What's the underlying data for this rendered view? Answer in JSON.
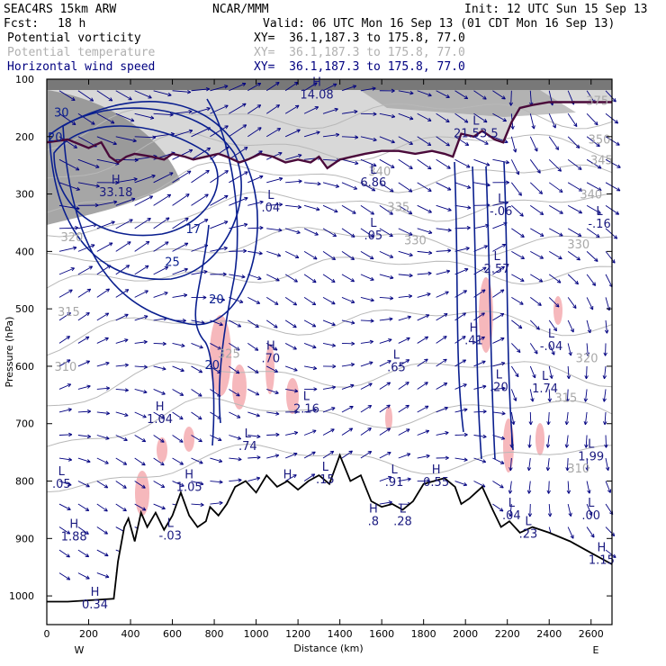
{
  "header": {
    "title": "SEAC4RS 15km ARW",
    "center": "NCAR/MMM",
    "init": "Init: 12 UTC Sun 15 Sep 13",
    "fcst_label": "Fcst:",
    "fcst_value": "18 h",
    "valid": "Valid: 06 UTC Mon 16 Sep 13 (01 CDT Mon 16 Sep 13)"
  },
  "fields": [
    {
      "name": "Potential vorticity",
      "xy": "XY=  36.1,187.3 to 175.8, 77.0",
      "color": "#000000"
    },
    {
      "name": "Potential temperature",
      "xy": "XY=  36.1,187.3 to 175.8, 77.0",
      "color": "#b0b0b0"
    },
    {
      "name": "Horizontal wind speed",
      "xy": "XY=  36.1,187.3 to 175.8, 77.0",
      "color": "#000080"
    }
  ],
  "chart_data": {
    "type": "cross-section",
    "xlabel": "Distance (km)",
    "ylabel": "Pressure (hPa)",
    "xlim": [
      0,
      2700
    ],
    "ylim": [
      1050,
      100
    ],
    "x_ticks": [
      0,
      200,
      400,
      600,
      800,
      1000,
      1200,
      1400,
      1600,
      1800,
      2000,
      2200,
      2400,
      2600
    ],
    "y_ticks": [
      100,
      200,
      300,
      400,
      500,
      600,
      700,
      800,
      900,
      1000
    ],
    "left_end_label": "W",
    "right_end_label": "E",
    "terrain_pressure": [
      [
        0,
        1010
      ],
      [
        100,
        1010
      ],
      [
        320,
        1005
      ],
      [
        340,
        940
      ],
      [
        370,
        880
      ],
      [
        390,
        865
      ],
      [
        420,
        905
      ],
      [
        450,
        855
      ],
      [
        480,
        880
      ],
      [
        520,
        855
      ],
      [
        560,
        885
      ],
      [
        600,
        860
      ],
      [
        640,
        820
      ],
      [
        680,
        860
      ],
      [
        720,
        880
      ],
      [
        760,
        870
      ],
      [
        780,
        845
      ],
      [
        820,
        860
      ],
      [
        860,
        840
      ],
      [
        900,
        810
      ],
      [
        950,
        800
      ],
      [
        1000,
        820
      ],
      [
        1050,
        790
      ],
      [
        1100,
        810
      ],
      [
        1150,
        800
      ],
      [
        1200,
        815
      ],
      [
        1250,
        800
      ],
      [
        1300,
        790
      ],
      [
        1350,
        805
      ],
      [
        1400,
        755
      ],
      [
        1450,
        800
      ],
      [
        1500,
        790
      ],
      [
        1550,
        835
      ],
      [
        1600,
        845
      ],
      [
        1650,
        840
      ],
      [
        1700,
        850
      ],
      [
        1750,
        835
      ],
      [
        1800,
        805
      ],
      [
        1850,
        800
      ],
      [
        1900,
        795
      ],
      [
        1950,
        810
      ],
      [
        1980,
        840
      ],
      [
        2020,
        830
      ],
      [
        2080,
        810
      ],
      [
        2130,
        850
      ],
      [
        2170,
        880
      ],
      [
        2210,
        870
      ],
      [
        2260,
        890
      ],
      [
        2320,
        880
      ],
      [
        2400,
        890
      ],
      [
        2500,
        905
      ],
      [
        2600,
        925
      ],
      [
        2700,
        945
      ]
    ],
    "tropopause_pressure": [
      [
        0,
        210
      ],
      [
        100,
        205
      ],
      [
        200,
        220
      ],
      [
        260,
        210
      ],
      [
        300,
        235
      ],
      [
        340,
        245
      ],
      [
        380,
        235
      ],
      [
        420,
        230
      ],
      [
        500,
        235
      ],
      [
        560,
        240
      ],
      [
        600,
        230
      ],
      [
        660,
        235
      ],
      [
        700,
        240
      ],
      [
        760,
        235
      ],
      [
        820,
        230
      ],
      [
        860,
        235
      ],
      [
        920,
        245
      ],
      [
        960,
        240
      ],
      [
        1020,
        230
      ],
      [
        1080,
        235
      ],
      [
        1140,
        245
      ],
      [
        1200,
        240
      ],
      [
        1260,
        245
      ],
      [
        1300,
        235
      ],
      [
        1340,
        255
      ],
      [
        1400,
        240
      ],
      [
        1460,
        235
      ],
      [
        1520,
        230
      ],
      [
        1600,
        225
      ],
      [
        1680,
        225
      ],
      [
        1760,
        230
      ],
      [
        1840,
        225
      ],
      [
        1900,
        230
      ],
      [
        1940,
        235
      ],
      [
        1980,
        195
      ],
      [
        2040,
        200
      ],
      [
        2080,
        190
      ],
      [
        2140,
        205
      ],
      [
        2180,
        210
      ],
      [
        2220,
        175
      ],
      [
        2260,
        150
      ],
      [
        2320,
        145
      ],
      [
        2400,
        140
      ],
      [
        2500,
        140
      ],
      [
        2600,
        140
      ],
      [
        2700,
        140
      ]
    ],
    "theta_label_rows": [
      {
        "x": 120,
        "p": 382,
        "label": "320"
      },
      {
        "x": 105,
        "p": 512,
        "label": "315"
      },
      {
        "x": 90,
        "p": 608,
        "label": "310"
      },
      {
        "x": 1590,
        "p": 268,
        "label": "340"
      },
      {
        "x": 1680,
        "p": 330,
        "label": "335"
      },
      {
        "x": 1760,
        "p": 388,
        "label": "330"
      },
      {
        "x": 2650,
        "p": 248,
        "label": "345"
      },
      {
        "x": 2600,
        "p": 308,
        "label": "340"
      },
      {
        "x": 2540,
        "p": 395,
        "label": "330"
      },
      {
        "x": 2580,
        "p": 593,
        "label": "320"
      },
      {
        "x": 2480,
        "p": 662,
        "label": "315"
      },
      {
        "x": 2540,
        "p": 785,
        "label": "310"
      },
      {
        "x": 2640,
        "p": 212,
        "label": "350"
      },
      {
        "x": 2630,
        "p": 145,
        "label": "375"
      },
      {
        "x": 870,
        "p": 585,
        "label": "325"
      }
    ],
    "wind_speed_labels": [
      {
        "x": 70,
        "p": 165,
        "label": "30"
      },
      {
        "x": 40,
        "p": 208,
        "label": "20"
      },
      {
        "x": 810,
        "p": 490,
        "label": "20"
      },
      {
        "x": 790,
        "p": 605,
        "label": "20"
      },
      {
        "x": 600,
        "p": 425,
        "label": "25"
      },
      {
        "x": 700,
        "p": 368,
        "label": "17"
      }
    ],
    "extrema": [
      {
        "x": 1290,
        "p": 115,
        "letter": "H",
        "value": "14.08"
      },
      {
        "x": 330,
        "p": 285,
        "letter": "H",
        "value": "33.18"
      },
      {
        "x": 1070,
        "p": 312,
        "letter": "L",
        "value": ".04"
      },
      {
        "x": 1560,
        "p": 268,
        "letter": "L",
        "value": "6.86"
      },
      {
        "x": 1560,
        "p": 360,
        "letter": "L",
        "value": ".05"
      },
      {
        "x": 2050,
        "p": 182,
        "letter": "L",
        "value": "21.53.5"
      },
      {
        "x": 2170,
        "p": 318,
        "letter": "L",
        "value": "-.06"
      },
      {
        "x": 2640,
        "p": 340,
        "letter": "L",
        "value": "-.16"
      },
      {
        "x": 2150,
        "p": 418,
        "letter": "L",
        "value": "2.57"
      },
      {
        "x": 2040,
        "p": 543,
        "letter": "H",
        "value": ".41"
      },
      {
        "x": 2410,
        "p": 553,
        "letter": "L",
        "value": "-.04"
      },
      {
        "x": 1670,
        "p": 590,
        "letter": "L",
        "value": ".65"
      },
      {
        "x": 1070,
        "p": 574,
        "letter": "H",
        "value": ".70"
      },
      {
        "x": 2160,
        "p": 624,
        "letter": "L",
        "value": ".20"
      },
      {
        "x": 2380,
        "p": 627,
        "letter": "L",
        "value": "1.74"
      },
      {
        "x": 1240,
        "p": 662,
        "letter": "L",
        "value": "2.16"
      },
      {
        "x": 540,
        "p": 680,
        "letter": "H",
        "value": "1.04"
      },
      {
        "x": 960,
        "p": 727,
        "letter": "L",
        "value": ".74"
      },
      {
        "x": 2600,
        "p": 745,
        "letter": "L",
        "value": "1.99"
      },
      {
        "x": 1660,
        "p": 790,
        "letter": "L",
        "value": ".91"
      },
      {
        "x": 1860,
        "p": 790,
        "letter": "H",
        "value": "0.55"
      },
      {
        "x": 1330,
        "p": 785,
        "letter": "L",
        "value": ".15"
      },
      {
        "x": 70,
        "p": 793,
        "letter": "L",
        "value": ".05"
      },
      {
        "x": 680,
        "p": 798,
        "letter": "H",
        "value": "1.05"
      },
      {
        "x": 1150,
        "p": 798,
        "letter": "H",
        "value": ""
      },
      {
        "x": 1560,
        "p": 858,
        "letter": "H",
        "value": ".8"
      },
      {
        "x": 1700,
        "p": 858,
        "letter": "L",
        "value": ".28"
      },
      {
        "x": 2220,
        "p": 848,
        "letter": "L",
        "value": ".04"
      },
      {
        "x": 2600,
        "p": 848,
        "letter": "L",
        "value": ".00"
      },
      {
        "x": 130,
        "p": 885,
        "letter": "H",
        "value": "1.88"
      },
      {
        "x": 590,
        "p": 883,
        "letter": "L",
        "value": "-.03"
      },
      {
        "x": 2300,
        "p": 880,
        "letter": "L",
        "value": ".23"
      },
      {
        "x": 2650,
        "p": 925,
        "letter": "H",
        "value": "1.15"
      },
      {
        "x": 230,
        "p": 1003,
        "letter": "H",
        "value": "0.34"
      }
    ]
  }
}
